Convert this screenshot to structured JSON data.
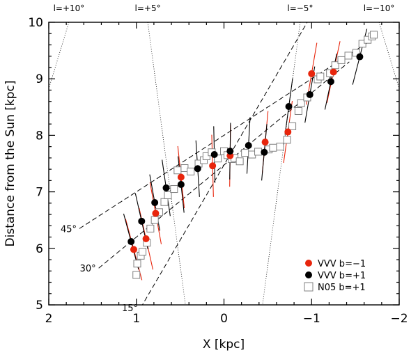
{
  "chart_data": {
    "type": "scatter",
    "title": "",
    "xlabel": "X [kpc]",
    "ylabel": "Distance from the Sun [kpc]",
    "xlim": [
      2,
      -2
    ],
    "ylim": [
      5,
      10
    ],
    "x_ticks": [
      2,
      1,
      0,
      -1,
      -2
    ],
    "x_tick_labels": [
      "2",
      "1",
      "0",
      "−1",
      "−2"
    ],
    "y_ticks": [
      5,
      6,
      7,
      8,
      9,
      10
    ],
    "y_tick_labels": [
      "5",
      "6",
      "7",
      "8",
      "9",
      "10"
    ],
    "grid": false,
    "legend_position": "bottom-right",
    "longitude_lines": [
      {
        "label": "l=+10°",
        "x_top": 1.77,
        "x_bottom": 2.75
      },
      {
        "label": "l=+5°",
        "x_top": 0.87,
        "x_bottom": 0.44
      },
      {
        "label": "l=−5°",
        "x_top": -0.87,
        "x_bottom": -0.44
      },
      {
        "label": "l=−10°",
        "x_top": -1.77,
        "x_bottom": -2.75
      }
    ],
    "bar_angle_lines": [
      {
        "label": "45°",
        "x1": 1.65,
        "y1": 6.35,
        "x2": -1.65,
        "y2": 9.65
      },
      {
        "label": "30°",
        "x1": 1.43,
        "y1": 5.65,
        "x2": -1.43,
        "y2": 9.3
      },
      {
        "label": "15°",
        "x1": 0.95,
        "y1": 4.95,
        "x2": -0.95,
        "y2": 10.0
      }
    ],
    "series": [
      {
        "name": "VVV b=−1",
        "color": "#e8250c",
        "marker": "filled-circle",
        "x": [
          1.03,
          0.89,
          0.78,
          0.49,
          0.13,
          -0.07,
          -0.47,
          -0.73,
          -1.0,
          -1.25
        ],
        "y": [
          5.98,
          6.17,
          6.62,
          7.26,
          7.46,
          7.64,
          7.88,
          8.06,
          9.09,
          9.12
        ]
      },
      {
        "name": "VVV b=+1",
        "color": "#000000",
        "marker": "filled-circle",
        "x": [
          1.06,
          0.94,
          0.79,
          0.66,
          0.49,
          0.3,
          0.11,
          -0.07,
          -0.28,
          -0.46,
          -0.74,
          -0.98,
          -1.22,
          -1.55
        ],
        "y": [
          6.12,
          6.48,
          6.81,
          7.07,
          7.13,
          7.41,
          7.66,
          7.72,
          7.82,
          7.7,
          8.51,
          8.72,
          8.95,
          9.39
        ]
      },
      {
        "name": "N05 b=+1",
        "color": "#808080",
        "marker": "open-square",
        "x": [
          1.0,
          0.99,
          0.95,
          0.93,
          0.88,
          0.84,
          0.79,
          0.74,
          0.68,
          0.64,
          0.57,
          0.53,
          0.45,
          0.38,
          0.29,
          0.23,
          0.2,
          0.14,
          0.07,
          0.0,
          -0.04,
          -0.09,
          -0.12,
          -0.18,
          -0.24,
          -0.32,
          -0.39,
          -0.51,
          -0.56,
          -0.64,
          -0.72,
          -0.78,
          -0.85,
          -0.88,
          -0.95,
          -1.07,
          -1.1,
          -1.21,
          -1.27,
          -1.34,
          -1.42,
          -1.51,
          -1.58,
          -1.64,
          -1.69,
          -1.71
        ],
        "y": [
          5.53,
          5.73,
          5.87,
          5.94,
          6.1,
          6.35,
          6.5,
          6.64,
          6.82,
          6.94,
          7.05,
          7.38,
          7.42,
          7.36,
          7.5,
          7.56,
          7.63,
          7.7,
          7.59,
          7.72,
          7.65,
          7.58,
          7.6,
          7.54,
          7.69,
          7.66,
          7.71,
          7.75,
          7.78,
          7.8,
          7.92,
          8.16,
          8.43,
          8.57,
          8.67,
          8.99,
          9.04,
          9.1,
          9.24,
          9.33,
          9.41,
          9.46,
          9.62,
          9.69,
          9.75,
          9.78
        ]
      }
    ]
  }
}
